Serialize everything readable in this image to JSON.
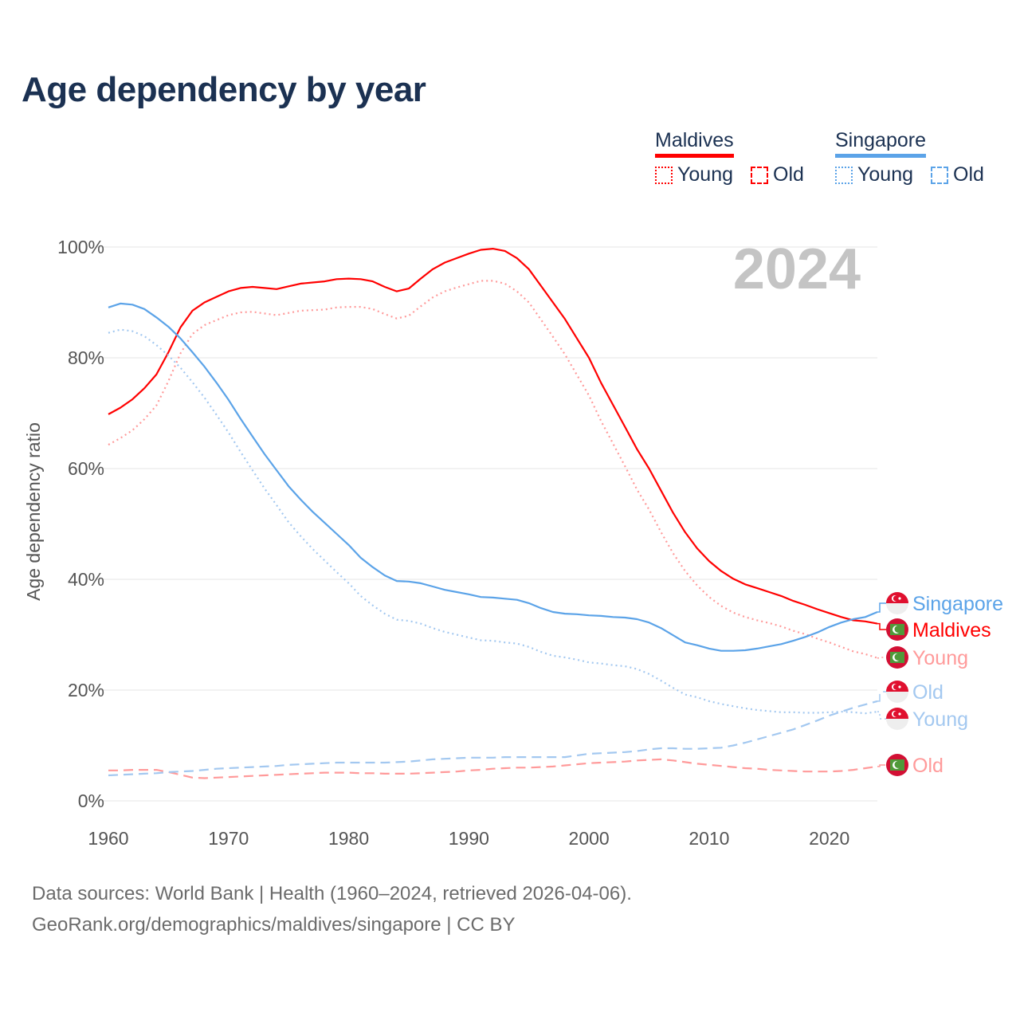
{
  "title": "Age dependency by year",
  "legend": {
    "groups": [
      {
        "country": "Maldives",
        "color": "#ff0000",
        "items": [
          "Young",
          "Old"
        ]
      },
      {
        "country": "Singapore",
        "color": "#5ba3e8",
        "items": [
          "Young",
          "Old"
        ]
      }
    ]
  },
  "year_label": "2024",
  "footer": {
    "line1": "Data sources: World Bank | Health (1960–2024, retrieved 2026-04-06).",
    "line2": "GeoRank.org/demographics/maldives/singapore | CC BY"
  },
  "chart_data": {
    "type": "line",
    "title": "Age dependency by year",
    "xlabel": "",
    "ylabel": "Age dependency ratio",
    "xlim": [
      1960,
      2024
    ],
    "ylim": [
      0,
      100
    ],
    "x_ticks": [
      "1960",
      "1970",
      "1980",
      "1990",
      "2000",
      "2010",
      "2020"
    ],
    "y_ticks": [
      "0%",
      "20%",
      "40%",
      "60%",
      "80%",
      "100%"
    ],
    "x_start": 1960,
    "grid": true,
    "series": [
      {
        "name": "Maldives",
        "label": "Maldives",
        "style": "solid",
        "color": "#ff0000",
        "flag": "maldives",
        "values": [
          69.8,
          71,
          72.5,
          74.5,
          77,
          81,
          85.5,
          88.5,
          90,
          91,
          92,
          92.6,
          92.8,
          92.6,
          92.4,
          92.9,
          93.4,
          93.6,
          93.8,
          94.2,
          94.3,
          94.2,
          93.8,
          92.8,
          92,
          92.5,
          94.3,
          96,
          97.2,
          98,
          98.8,
          99.5,
          99.7,
          99.3,
          98,
          96,
          93,
          90,
          87,
          83.5,
          80,
          75.5,
          71.5,
          67.5,
          63.5,
          60,
          56,
          52,
          48.5,
          45.6,
          43.3,
          41.5,
          40.1,
          39.1,
          38.4,
          37.7,
          37,
          36.1,
          35.4,
          34.6,
          33.9,
          33.2,
          32.6,
          32.4,
          32.0
        ]
      },
      {
        "name": "Maldives Young",
        "label": "Young",
        "style": "dotted",
        "color": "#ff9a9a",
        "flag": "maldives",
        "values": [
          64.3,
          65.5,
          66.9,
          68.9,
          71.4,
          75.8,
          80.8,
          84.3,
          85.9,
          86.8,
          87.7,
          88.2,
          88.3,
          88.0,
          87.7,
          88.1,
          88.5,
          88.6,
          88.7,
          89.1,
          89.2,
          89.2,
          88.8,
          87.9,
          87.1,
          87.6,
          89.3,
          90.9,
          92.0,
          92.7,
          93.3,
          93.9,
          93.9,
          93.4,
          92.0,
          90.0,
          86.9,
          83.8,
          80.6,
          76.9,
          73.2,
          68.6,
          64.5,
          60.4,
          56.2,
          52.6,
          48.5,
          44.7,
          41.5,
          38.9,
          36.8,
          35.2,
          34.0,
          33.2,
          32.6,
          32.1,
          31.5,
          30.7,
          30.1,
          29.3,
          28.6,
          27.8,
          27.0,
          26.5,
          25.8
        ]
      },
      {
        "name": "Maldives Old",
        "label": "Old",
        "style": "dashed",
        "color": "#ff9a9a",
        "flag": "maldives",
        "values": [
          5.5,
          5.5,
          5.6,
          5.6,
          5.6,
          5.2,
          4.7,
          4.2,
          4.1,
          4.2,
          4.3,
          4.4,
          4.5,
          4.6,
          4.7,
          4.8,
          4.9,
          5.0,
          5.1,
          5.1,
          5.1,
          5.0,
          5.0,
          4.9,
          4.9,
          4.9,
          5.0,
          5.1,
          5.2,
          5.3,
          5.5,
          5.6,
          5.8,
          5.9,
          6.0,
          6.0,
          6.1,
          6.2,
          6.4,
          6.6,
          6.8,
          6.9,
          7.0,
          7.1,
          7.3,
          7.4,
          7.5,
          7.3,
          7.0,
          6.7,
          6.5,
          6.3,
          6.1,
          5.9,
          5.8,
          5.6,
          5.5,
          5.4,
          5.3,
          5.3,
          5.3,
          5.4,
          5.6,
          5.9,
          6.2
        ]
      },
      {
        "name": "Singapore",
        "label": "Singapore",
        "style": "solid",
        "color": "#5ba3e8",
        "flag": "singapore",
        "values": [
          89.1,
          89.8,
          89.6,
          88.8,
          87.3,
          85.6,
          83.5,
          81,
          78.4,
          75.5,
          72.4,
          69,
          65.8,
          62.6,
          59.7,
          56.8,
          54.4,
          52.2,
          50.2,
          48.2,
          46.2,
          43.9,
          42.2,
          40.7,
          39.7,
          39.6,
          39.3,
          38.7,
          38.1,
          37.7,
          37.3,
          36.8,
          36.7,
          36.5,
          36.3,
          35.7,
          34.8,
          34.1,
          33.8,
          33.7,
          33.5,
          33.4,
          33.2,
          33.1,
          32.8,
          32.2,
          31.2,
          29.9,
          28.6,
          28.1,
          27.5,
          27.1,
          27.1,
          27.2,
          27.5,
          27.9,
          28.3,
          28.9,
          29.6,
          30.4,
          31.4,
          32.2,
          32.8,
          33.2,
          34.1
        ]
      },
      {
        "name": "Singapore Young",
        "label": "Young",
        "style": "dotted",
        "color": "#a3c8f0",
        "flag": "singapore",
        "values": [
          84.5,
          85.1,
          84.8,
          83.9,
          82.3,
          80.4,
          78.2,
          75.6,
          72.8,
          69.7,
          66.5,
          63.0,
          59.7,
          56.4,
          53.4,
          50.3,
          47.8,
          45.5,
          43.4,
          41.3,
          39.3,
          37.0,
          35.3,
          33.8,
          32.7,
          32.5,
          32.0,
          31.2,
          30.5,
          30.0,
          29.5,
          29.0,
          28.9,
          28.6,
          28.4,
          27.8,
          26.9,
          26.2,
          25.9,
          25.5,
          25.0,
          24.8,
          24.5,
          24.3,
          23.8,
          22.9,
          21.7,
          20.4,
          19.2,
          18.7,
          18.0,
          17.5,
          17.1,
          16.7,
          16.4,
          16.2,
          16.0,
          16.0,
          15.9,
          15.9,
          16.0,
          16.1,
          16.0,
          15.8,
          16.1
        ]
      },
      {
        "name": "Singapore Old",
        "label": "Old",
        "style": "dashed",
        "color": "#a3c8f0",
        "flag": "singapore",
        "values": [
          4.6,
          4.7,
          4.8,
          4.9,
          5.0,
          5.2,
          5.3,
          5.4,
          5.6,
          5.8,
          5.9,
          6.0,
          6.1,
          6.2,
          6.3,
          6.5,
          6.6,
          6.7,
          6.8,
          6.9,
          6.9,
          6.9,
          6.9,
          6.9,
          7.0,
          7.1,
          7.3,
          7.5,
          7.6,
          7.7,
          7.8,
          7.8,
          7.8,
          7.9,
          7.9,
          7.9,
          7.9,
          7.9,
          7.9,
          8.2,
          8.5,
          8.6,
          8.7,
          8.8,
          9.0,
          9.3,
          9.5,
          9.5,
          9.4,
          9.4,
          9.5,
          9.6,
          10.0,
          10.5,
          11.1,
          11.7,
          12.3,
          12.9,
          13.7,
          14.5,
          15.4,
          16.1,
          16.8,
          17.4,
          18.0
        ]
      }
    ]
  }
}
